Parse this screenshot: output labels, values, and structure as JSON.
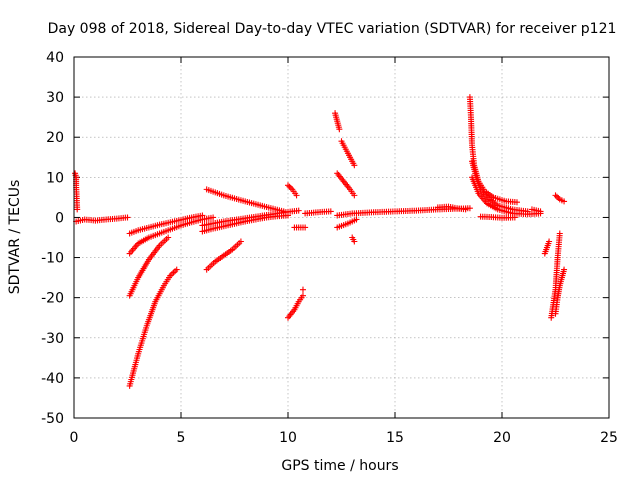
{
  "chart_data": {
    "type": "scatter",
    "title": "Day 098 of 2018, Sidereal Day-to-day VTEC variation (SDTVAR) for receiver p121",
    "xlabel": "GPS time / hours",
    "ylabel": "SDTVAR / TECUs",
    "xlim": [
      0,
      25
    ],
    "ylim": [
      -50,
      40
    ],
    "x_ticks": [
      0,
      5,
      10,
      15,
      20,
      25
    ],
    "y_ticks": [
      -50,
      -40,
      -30,
      -20,
      -10,
      0,
      10,
      20,
      30,
      40
    ],
    "grid": true,
    "marker": "plus",
    "color": "#ff0000",
    "series": [
      {
        "x": [
          0.05,
          0.1,
          0.1,
          0.15
        ],
        "y": [
          11,
          10,
          8,
          2
        ]
      },
      {
        "x": [
          0.1,
          0.5,
          1.0,
          1.5,
          2.0,
          2.5
        ],
        "y": [
          -1,
          -0.5,
          -0.8,
          -0.5,
          -0.3,
          0
        ]
      },
      {
        "x": [
          2.6,
          3.0,
          3.5,
          4.0,
          4.5,
          5.0,
          5.5,
          6.0
        ],
        "y": [
          -4,
          -3.2,
          -2.5,
          -1.8,
          -1.2,
          -0.6,
          0,
          0.5
        ]
      },
      {
        "x": [
          2.6,
          3.0,
          3.5,
          4.0,
          4.5,
          5.0,
          5.5,
          6.0,
          6.5
        ],
        "y": [
          -9,
          -6.5,
          -5,
          -4,
          -3,
          -2,
          -1.2,
          -0.5,
          0
        ]
      },
      {
        "x": [
          2.6,
          3.0,
          3.5,
          4.0,
          4.4
        ],
        "y": [
          -19.5,
          -15,
          -10.5,
          -7,
          -5
        ]
      },
      {
        "x": [
          2.6,
          3.0,
          3.4,
          3.8,
          4.2,
          4.5,
          4.8
        ],
        "y": [
          -42,
          -34,
          -27,
          -21,
          -17,
          -14.5,
          -13
        ]
      },
      {
        "x": [
          6.0,
          6.5,
          7.0,
          7.5,
          8.0,
          8.5,
          9.0,
          9.5,
          10.0,
          10.5
        ],
        "y": [
          -2,
          -1.5,
          -1.0,
          -0.6,
          -0.2,
          0.2,
          0.6,
          1.0,
          1.4,
          1.7
        ]
      },
      {
        "x": [
          6.0,
          6.5,
          7.0,
          7.5,
          8.0,
          8.5,
          9.0,
          9.5,
          10.0
        ],
        "y": [
          -3.5,
          -2.8,
          -2.2,
          -1.6,
          -1.0,
          -0.5,
          0,
          0.3,
          0.5
        ]
      },
      {
        "x": [
          6.2,
          6.6,
          7.0,
          7.4,
          7.8
        ],
        "y": [
          -13,
          -11,
          -9.5,
          -8,
          -6
        ]
      },
      {
        "x": [
          6.2,
          7.0,
          8.0,
          9.0,
          9.8
        ],
        "y": [
          7,
          5.5,
          4,
          2.6,
          1.5
        ]
      },
      {
        "x": [
          10.0,
          10.3,
          10.5,
          10.7
        ],
        "y": [
          -25,
          -23,
          -21,
          -19.5
        ]
      },
      {
        "x": [
          10.7
        ],
        "y": [
          -18
        ]
      },
      {
        "x": [
          10.0,
          10.2,
          10.4
        ],
        "y": [
          8,
          7,
          5.5
        ]
      },
      {
        "x": [
          10.3,
          10.8
        ],
        "y": [
          -2.5,
          -2.5
        ]
      },
      {
        "x": [
          10.8,
          11.2,
          11.6,
          12.0
        ],
        "y": [
          1.0,
          1.2,
          1.4,
          1.5
        ]
      },
      {
        "x": [
          12.2,
          12.3,
          12.4
        ],
        "y": [
          26,
          24,
          22
        ]
      },
      {
        "x": [
          12.5,
          12.8,
          13.1
        ],
        "y": [
          19,
          16,
          13
        ]
      },
      {
        "x": [
          12.3,
          12.6,
          12.9,
          13.1
        ],
        "y": [
          11,
          9,
          7,
          5.5
        ]
      },
      {
        "x": [
          12.3,
          12.8,
          13.2
        ],
        "y": [
          -2.5,
          -1.5,
          -0.5
        ]
      },
      {
        "x": [
          13.0,
          13.1
        ],
        "y": [
          -5,
          -6
        ]
      },
      {
        "x": [
          12.3,
          13.0,
          14.0,
          15.0,
          16.0,
          17.0,
          18.0,
          18.5
        ],
        "y": [
          0.5,
          1.0,
          1.3,
          1.5,
          1.7,
          2.0,
          2.2,
          2.3
        ]
      },
      {
        "x": [
          17.0,
          17.5,
          18.0,
          18.3
        ],
        "y": [
          2.5,
          2.7,
          2.2,
          2.0
        ]
      },
      {
        "x": [
          18.5,
          18.55,
          18.6,
          18.7,
          18.9,
          19.2,
          19.6,
          20.2,
          20.7
        ],
        "y": [
          30,
          25,
          18,
          13,
          9,
          6.5,
          5,
          4,
          3.8
        ]
      },
      {
        "x": [
          18.6,
          18.8,
          19.0,
          19.4,
          19.8,
          20.5,
          21.2
        ],
        "y": [
          14,
          10,
          7,
          4.5,
          3,
          2,
          1.5
        ]
      },
      {
        "x": [
          18.6,
          18.9,
          19.3,
          19.8,
          20.5,
          21.2,
          21.8
        ],
        "y": [
          10,
          6,
          3.5,
          2,
          1,
          0.8,
          1
        ]
      },
      {
        "x": [
          19.0,
          19.5,
          20.0,
          20.6
        ],
        "y": [
          0.2,
          0.1,
          -0.1,
          0
        ]
      },
      {
        "x": [
          21.4,
          21.8
        ],
        "y": [
          2,
          1.5
        ]
      },
      {
        "x": [
          22.0,
          22.1,
          22.2
        ],
        "y": [
          -9,
          -7.5,
          -6
        ]
      },
      {
        "x": [
          22.3,
          22.5,
          22.6,
          22.7
        ],
        "y": [
          -25,
          -18,
          -10,
          -4
        ]
      },
      {
        "x": [
          22.5,
          22.6,
          22.7,
          22.9
        ],
        "y": [
          -24,
          -20,
          -17,
          -13
        ]
      },
      {
        "x": [
          22.5,
          22.7,
          22.9
        ],
        "y": [
          5.5,
          4.5,
          4
        ]
      }
    ]
  }
}
